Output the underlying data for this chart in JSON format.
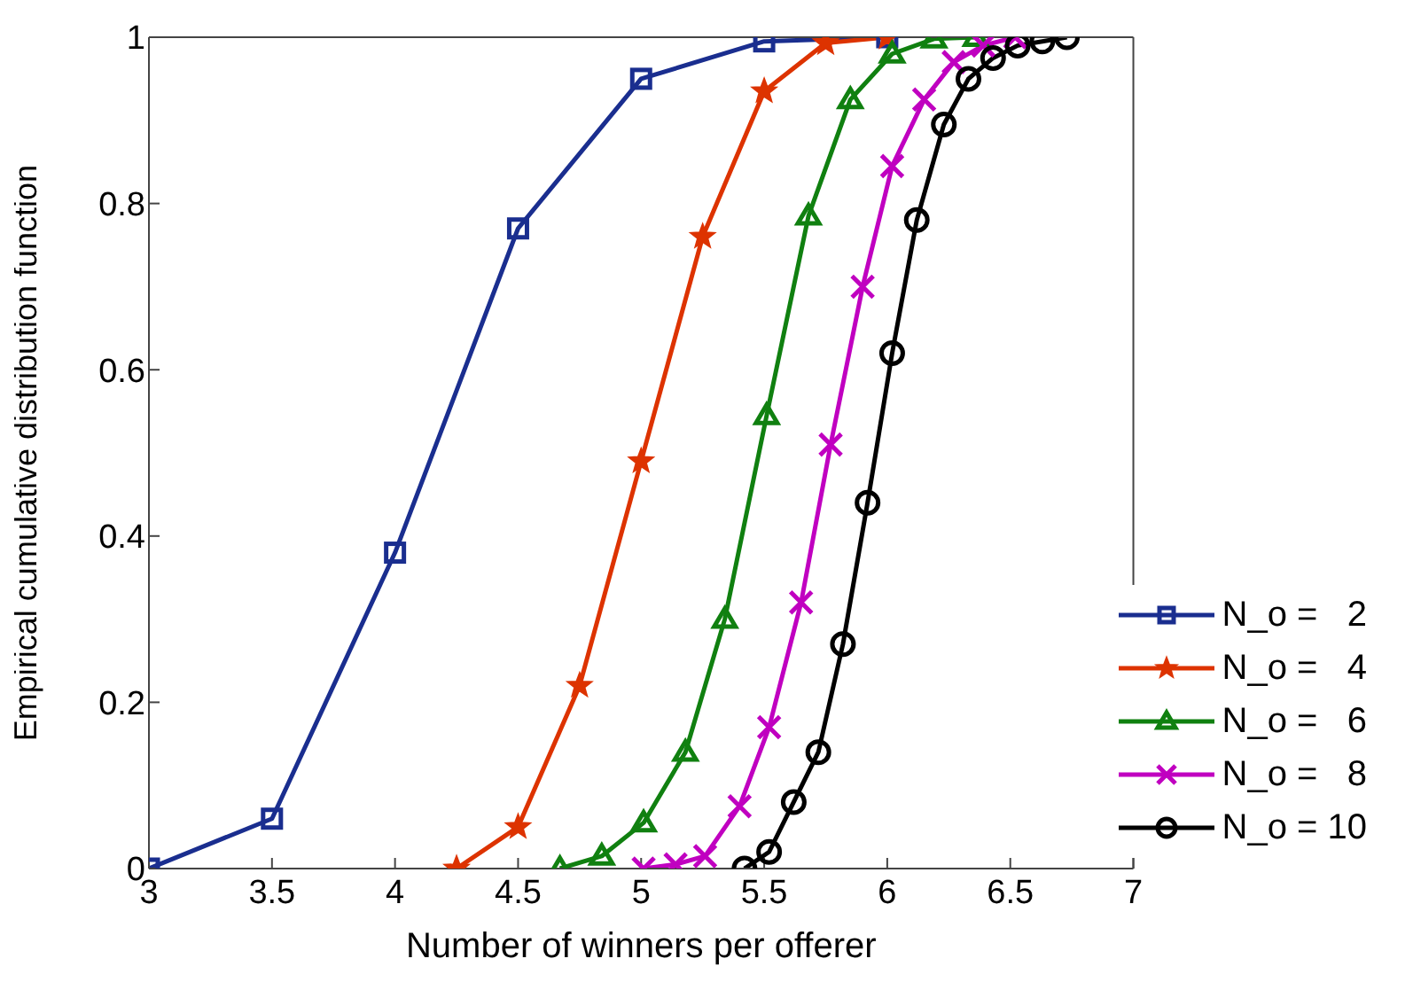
{
  "chart_data": {
    "type": "line",
    "xlabel": "Number of winners per offerer",
    "ylabel": "Empirical cumulative distribution function",
    "xlim": [
      3,
      7
    ],
    "xticks": [
      3,
      3.5,
      4,
      4.5,
      5,
      5.5,
      6,
      6.5,
      7
    ],
    "ylim": [
      0,
      1
    ],
    "yticks": [
      0,
      0.2,
      0.4,
      0.6,
      0.8,
      1
    ],
    "grid": false,
    "legend": "bottom right",
    "line_style": "solid",
    "series": [
      {
        "name": "N_o =   2",
        "color": "#1a2e8f",
        "marker": "square",
        "x": [
          3,
          3.5,
          4,
          4.5,
          5,
          5.5,
          6
        ],
        "values": [
          0,
          0.06,
          0.38,
          0.77,
          0.95,
          0.995,
          1
        ]
      },
      {
        "name": "N_o =   4",
        "color": "#dd3300",
        "marker": "star",
        "x": [
          4.25,
          4.5,
          4.75,
          5,
          5.25,
          5.5,
          5.75,
          6
        ],
        "values": [
          0,
          0.05,
          0.22,
          0.49,
          0.76,
          0.935,
          0.993,
          1
        ]
      },
      {
        "name": "N_o =   6",
        "color": "#108010",
        "marker": "triangle",
        "x": [
          4.67,
          4.84,
          5.01,
          5.18,
          5.34,
          5.51,
          5.68,
          5.85,
          6.02,
          6.19,
          6.36
        ],
        "values": [
          0,
          0.015,
          0.055,
          0.14,
          0.3,
          0.545,
          0.785,
          0.925,
          0.98,
          0.998,
          1
        ]
      },
      {
        "name": "N_o =   8",
        "color": "#c000c0",
        "marker": "cross",
        "x": [
          5.01,
          5.14,
          5.26,
          5.4,
          5.52,
          5.65,
          5.77,
          5.9,
          6.02,
          6.15,
          6.27,
          6.39,
          6.52
        ],
        "values": [
          0,
          0.005,
          0.015,
          0.075,
          0.17,
          0.32,
          0.51,
          0.7,
          0.845,
          0.925,
          0.97,
          0.99,
          1
        ]
      },
      {
        "name": "N_o = 10",
        "color": "#000000",
        "marker": "circle",
        "x": [
          5.42,
          5.52,
          5.62,
          5.72,
          5.82,
          5.92,
          6.02,
          6.12,
          6.23,
          6.33,
          6.43,
          6.53,
          6.63,
          6.73
        ],
        "values": [
          0,
          0.02,
          0.08,
          0.14,
          0.27,
          0.44,
          0.62,
          0.78,
          0.895,
          0.95,
          0.975,
          0.99,
          0.995,
          1
        ]
      }
    ]
  }
}
